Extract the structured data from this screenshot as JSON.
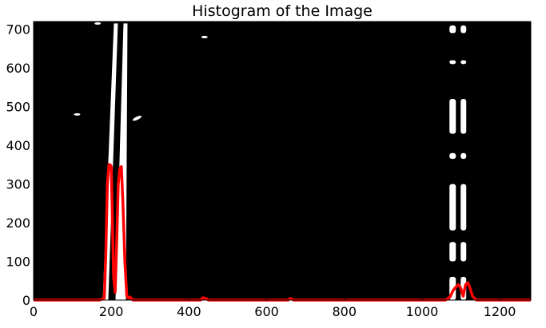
{
  "chart_data": {
    "type": "line",
    "title": "Histogram of the Image",
    "xlabel": "",
    "ylabel": "",
    "xlim": [
      0,
      1280
    ],
    "ylim": [
      0,
      720
    ],
    "x_ticks": [
      "0",
      "200",
      "400",
      "600",
      "800",
      "1000",
      "1200"
    ],
    "y_ticks": [
      "0",
      "100",
      "200",
      "300",
      "400",
      "500",
      "600",
      "700"
    ],
    "grid": false,
    "legend": "none",
    "background": "binary lane-line image (white lane pixels on black)",
    "series": [
      {
        "color": "#ff0000",
        "x": [
          0,
          170,
          182,
          186,
          190,
          194,
          197,
          200,
          203,
          206,
          210,
          214,
          218,
          222,
          226,
          230,
          235,
          240,
          244,
          248,
          256,
          430,
          436,
          440,
          446,
          450,
          655,
          660,
          664,
          670,
          1060,
          1072,
          1080,
          1088,
          1094,
          1100,
          1106,
          1112,
          1118,
          1124,
          1130,
          1140,
          1280
        ],
        "y": [
          0,
          0,
          5,
          120,
          300,
          350,
          350,
          345,
          200,
          60,
          20,
          150,
          300,
          340,
          345,
          250,
          100,
          10,
          5,
          8,
          0,
          0,
          6,
          5,
          3,
          0,
          0,
          4,
          3,
          0,
          0,
          8,
          25,
          35,
          40,
          30,
          10,
          40,
          45,
          30,
          10,
          0,
          0
        ]
      }
    ],
    "lane_regions": [
      {
        "x": [
          180,
          250
        ],
        "y": [
          0,
          715
        ]
      },
      {
        "x": [
          1050,
          1130
        ],
        "y": [
          0,
          715
        ]
      }
    ]
  }
}
